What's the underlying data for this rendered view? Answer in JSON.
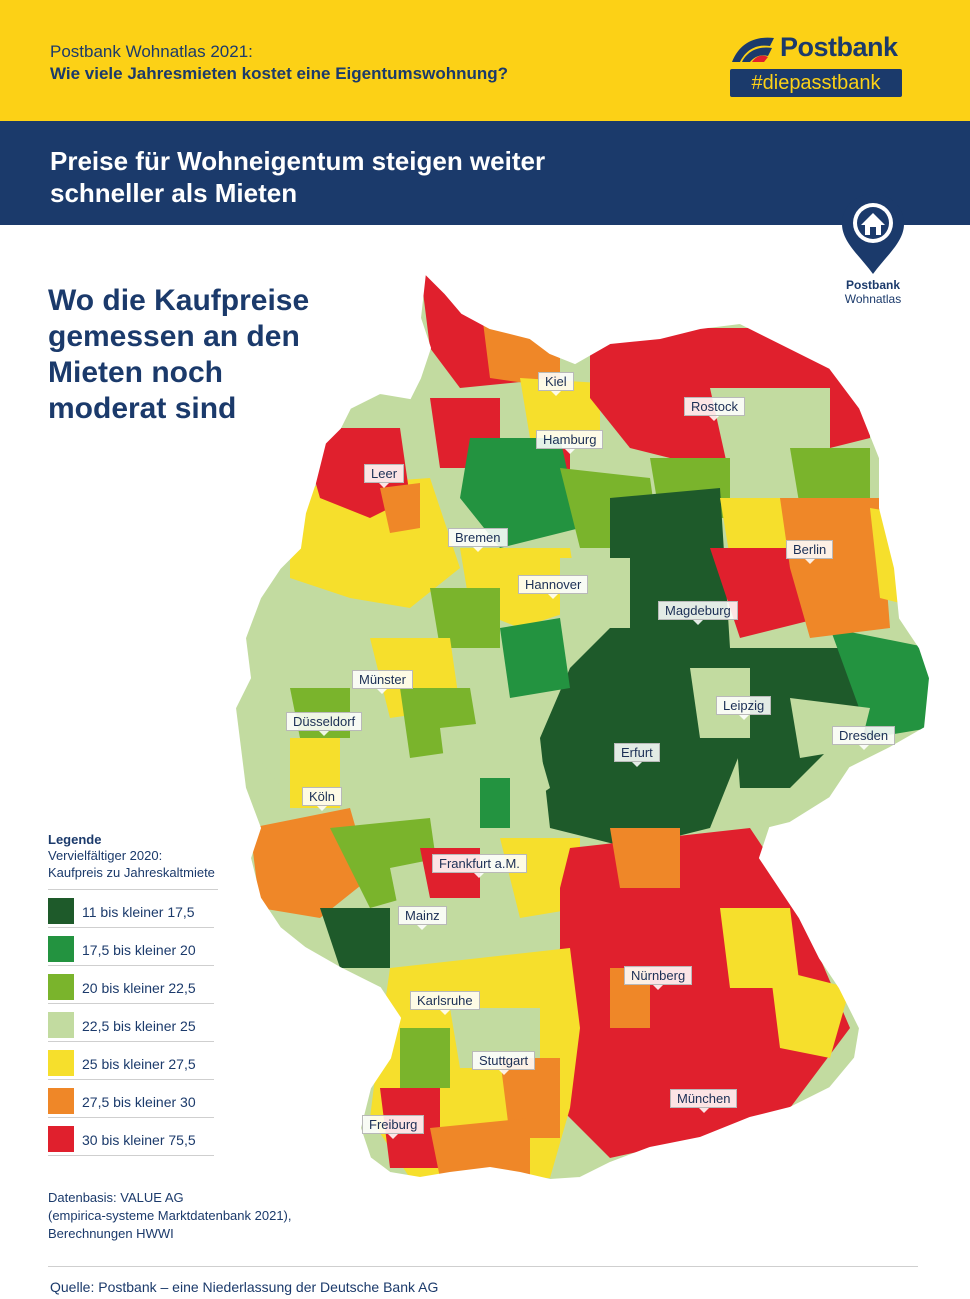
{
  "header": {
    "line1": "Postbank Wohnatlas 2021:",
    "line2": "Wie viele Jahresmieten kostet eine Eigentumswohnung?"
  },
  "logo": {
    "word": "Postbank",
    "tagline": "#diepasstbank",
    "brand_color": "#1b3a6b",
    "accent_color": "#fcd116"
  },
  "banner": {
    "title": "Preise für Wohneigentum steigen weiter schneller als Mieten"
  },
  "badge": {
    "line1": "Postbank",
    "line2": "Wohnatlas",
    "icon": "house-pin-icon"
  },
  "subheadline": "Wo die Kaufpreise gemessen an den Mieten noch moderat sind",
  "legend": {
    "title": "Legende",
    "subtitle_1": "Vervielfältiger 2020:",
    "subtitle_2": "Kaufpreis zu Jahreskaltmiete",
    "classes": [
      {
        "label": "11 bis kleiner 17,5",
        "color": "#1e5a2a"
      },
      {
        "label": "17,5 bis kleiner 20",
        "color": "#239340"
      },
      {
        "label": "20 bis kleiner 22,5",
        "color": "#7ab42c"
      },
      {
        "label": "22,5 bis kleiner 25",
        "color": "#c2dba0"
      },
      {
        "label": "25 bis kleiner 27,5",
        "color": "#f6df2c"
      },
      {
        "label": "27,5 bis kleiner 30",
        "color": "#ef8728"
      },
      {
        "label": "30 bis kleiner 75,5",
        "color": "#e0202d"
      }
    ]
  },
  "cities": [
    {
      "name": "Kiel"
    },
    {
      "name": "Rostock"
    },
    {
      "name": "Hamburg"
    },
    {
      "name": "Leer"
    },
    {
      "name": "Bremen"
    },
    {
      "name": "Berlin"
    },
    {
      "name": "Hannover"
    },
    {
      "name": "Magdeburg"
    },
    {
      "name": "Münster"
    },
    {
      "name": "Leipzig"
    },
    {
      "name": "Düsseldorf"
    },
    {
      "name": "Dresden"
    },
    {
      "name": "Erfurt"
    },
    {
      "name": "Köln"
    },
    {
      "name": "Frankfurt a.M."
    },
    {
      "name": "Mainz"
    },
    {
      "name": "Nürnberg"
    },
    {
      "name": "Karlsruhe"
    },
    {
      "name": "Stuttgart"
    },
    {
      "name": "München"
    },
    {
      "name": "Freiburg"
    }
  ],
  "data_source": {
    "line1": "Datenbasis: VALUE AG",
    "line2": "(empirica-systeme Marktdatenbank 2021),",
    "line3": "Berechnungen HWWI"
  },
  "footer": "Quelle: Postbank – eine Niederlassung der Deutsche Bank AG"
}
